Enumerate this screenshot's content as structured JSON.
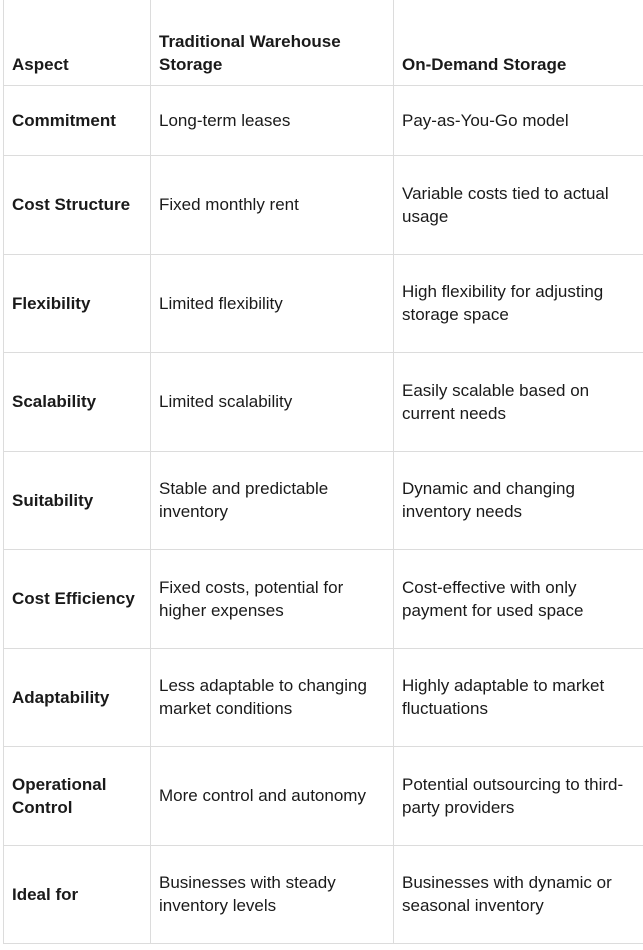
{
  "table": {
    "headers": [
      "Aspect",
      "Traditional Warehouse Storage",
      "On-Demand Storage"
    ],
    "rows": [
      [
        "Commitment",
        "Long-term leases",
        "Pay-as-You-Go model"
      ],
      [
        "Cost Structure",
        "Fixed monthly rent",
        "Variable costs tied to actual usage"
      ],
      [
        "Flexibility",
        "Limited flexibility",
        "High flexibility for adjusting storage space"
      ],
      [
        "Scalability",
        "Limited scalability",
        "Easily scalable based on current needs"
      ],
      [
        "Suitability",
        "Stable and predictable inventory",
        "Dynamic and changing inventory needs"
      ],
      [
        "Cost Efficiency",
        "Fixed costs, potential for higher expenses",
        "Cost-effective with only payment for used space"
      ],
      [
        "Adaptability",
        "Less adaptable to changing market conditions",
        "Highly adaptable to market fluctuations"
      ],
      [
        "Operational Control",
        "More control and autonomy",
        "Potential outsourcing to third-party providers"
      ],
      [
        "Ideal for",
        "Businesses with steady inventory levels",
        "Businesses with dynamic or seasonal inventory"
      ]
    ]
  }
}
